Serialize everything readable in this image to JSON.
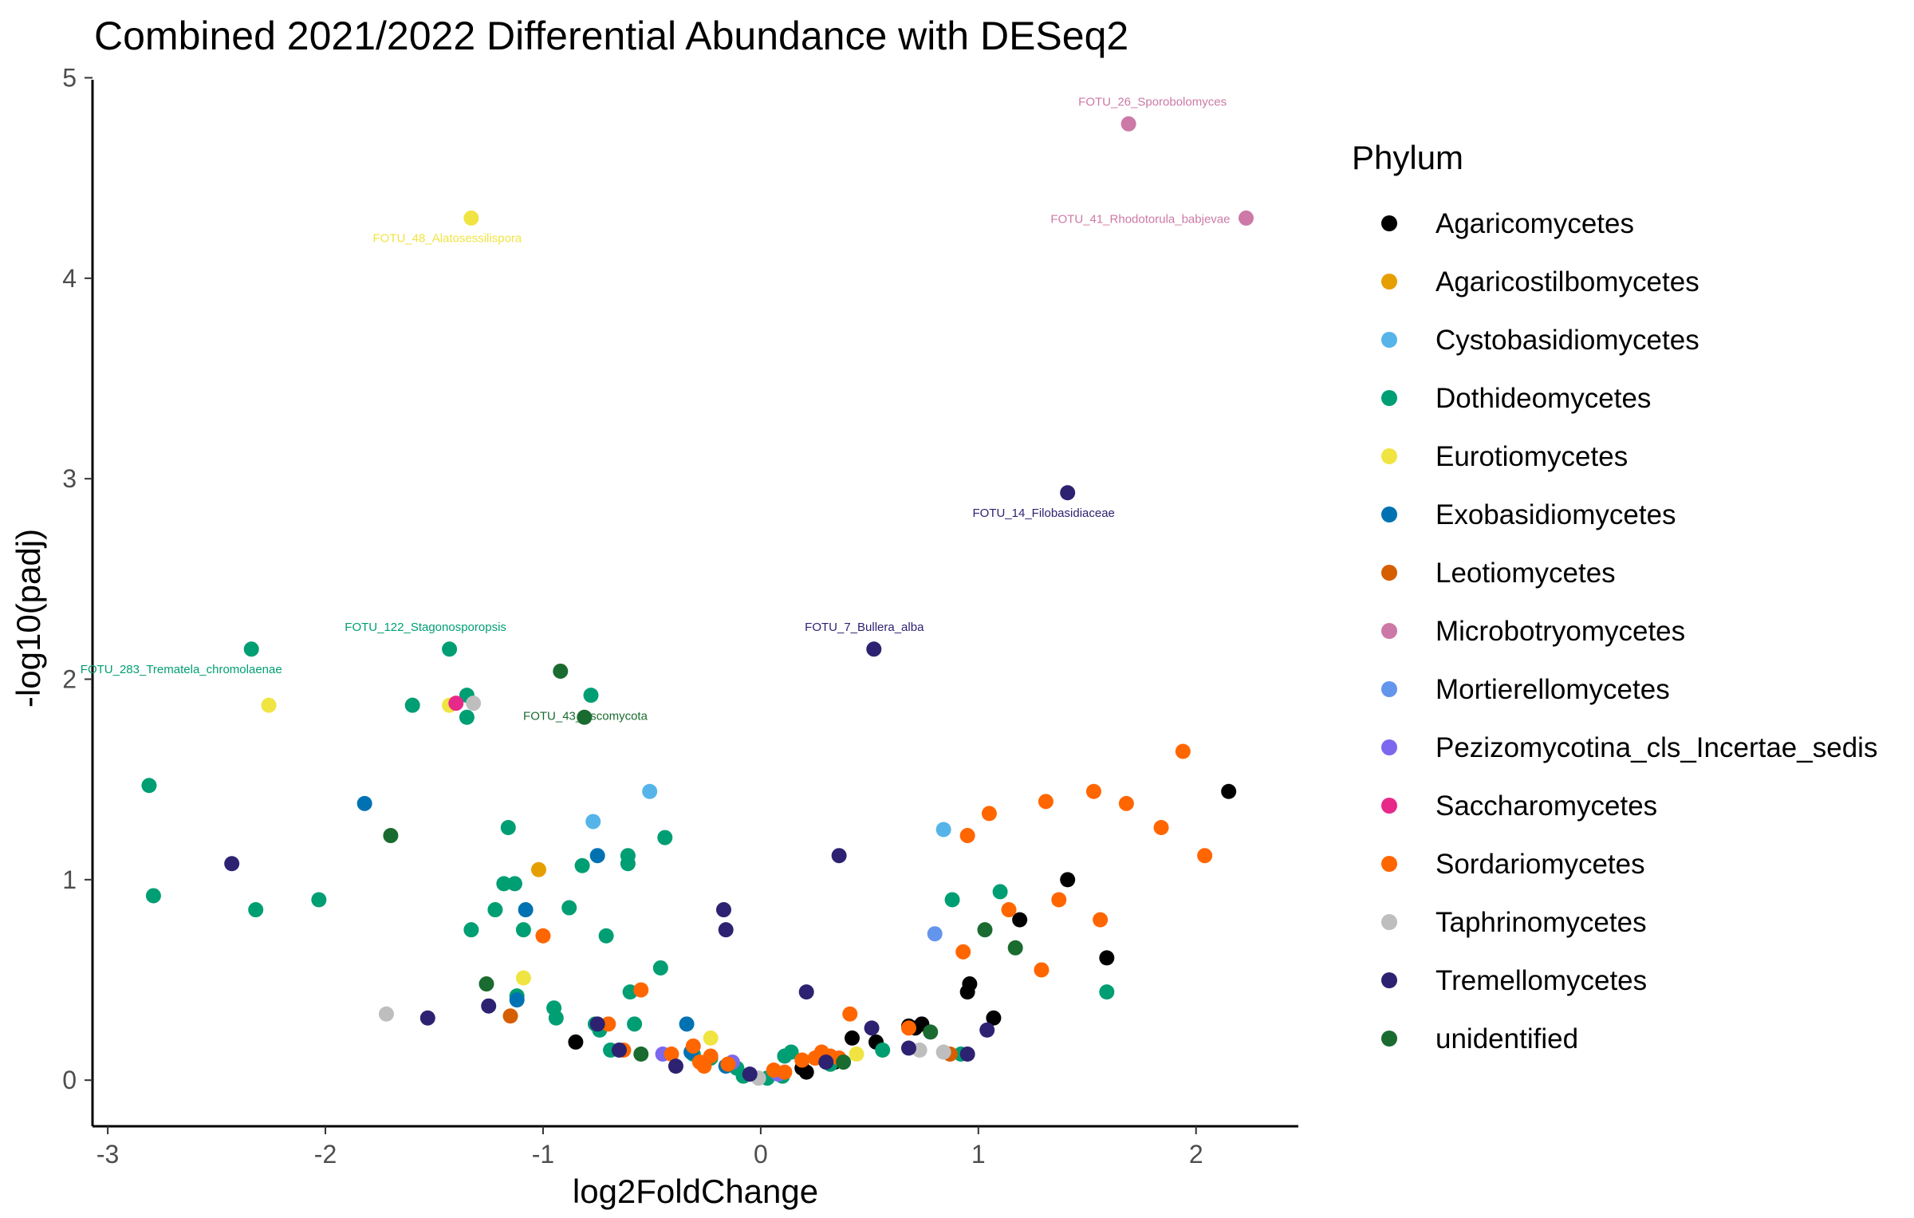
{
  "chart_data": {
    "type": "scatter",
    "title": "Combined 2021/2022 Differential Abundance with DESeq2",
    "xlabel": "log2FoldChange",
    "ylabel": "-log10(padj)",
    "xlim": [
      -3.07,
      2.47
    ],
    "ylim": [
      -0.23,
      4.99
    ],
    "xticks": [
      -3,
      -2,
      -1,
      0,
      1,
      2
    ],
    "yticks": [
      0,
      1,
      2,
      3,
      4,
      5
    ],
    "grid": false,
    "legend": {
      "title": "Phylum",
      "position": "right"
    },
    "series": [
      {
        "name": "Agaricomycetes",
        "color": "#000000",
        "points": [
          [
            -0.85,
            0.19
          ],
          [
            0.19,
            0.06
          ],
          [
            0.21,
            0.04
          ],
          [
            0.32,
            0.08
          ],
          [
            0.34,
            0.09
          ],
          [
            0.42,
            0.21
          ],
          [
            0.53,
            0.19
          ],
          [
            0.68,
            0.27
          ],
          [
            0.71,
            0.26
          ],
          [
            0.74,
            0.28
          ],
          [
            0.95,
            0.44
          ],
          [
            0.96,
            0.48
          ],
          [
            1.07,
            0.31
          ],
          [
            1.19,
            0.8
          ],
          [
            1.41,
            1.0
          ],
          [
            1.59,
            0.61
          ],
          [
            2.15,
            1.44
          ]
        ]
      },
      {
        "name": "Agaricostilbomycetes",
        "color": "#E69F00",
        "points": [
          [
            -1.02,
            1.05
          ]
        ]
      },
      {
        "name": "Cystobasidiomycetes",
        "color": "#56B4E9",
        "points": [
          [
            -0.77,
            1.29
          ],
          [
            -0.51,
            1.44
          ],
          [
            0.84,
            1.25
          ]
        ]
      },
      {
        "name": "Dothideomycetes",
        "color": "#009E73",
        "points": [
          [
            -2.81,
            1.47
          ],
          [
            -2.79,
            0.92
          ],
          [
            -2.34,
            2.15
          ],
          [
            -2.32,
            0.85
          ],
          [
            -2.03,
            0.9
          ],
          [
            -1.6,
            1.87
          ],
          [
            -1.43,
            2.15
          ],
          [
            -1.35,
            1.92
          ],
          [
            -1.35,
            1.81
          ],
          [
            -1.33,
            0.75
          ],
          [
            -1.22,
            0.85
          ],
          [
            -1.18,
            0.98
          ],
          [
            -1.16,
            1.26
          ],
          [
            -1.13,
            0.98
          ],
          [
            -1.12,
            0.42
          ],
          [
            -1.09,
            0.75
          ],
          [
            -0.95,
            0.36
          ],
          [
            -0.94,
            0.31
          ],
          [
            -0.88,
            0.86
          ],
          [
            -0.82,
            1.07
          ],
          [
            -0.78,
            1.92
          ],
          [
            -0.76,
            0.28
          ],
          [
            -0.74,
            0.25
          ],
          [
            -0.71,
            0.72
          ],
          [
            -0.69,
            0.15
          ],
          [
            -0.61,
            1.12
          ],
          [
            -0.61,
            1.08
          ],
          [
            -0.6,
            0.44
          ],
          [
            -0.58,
            0.28
          ],
          [
            -0.46,
            0.56
          ],
          [
            -0.44,
            1.21
          ],
          [
            -0.31,
            0.13
          ],
          [
            -0.23,
            0.11
          ],
          [
            -0.11,
            0.06
          ],
          [
            -0.08,
            0.02
          ],
          [
            0.03,
            0.01
          ],
          [
            0.1,
            0.02
          ],
          [
            0.11,
            0.12
          ],
          [
            0.14,
            0.14
          ],
          [
            0.32,
            0.08
          ],
          [
            0.56,
            0.15
          ],
          [
            0.88,
            0.9
          ],
          [
            0.92,
            0.13
          ],
          [
            1.1,
            0.94
          ],
          [
            1.59,
            0.44
          ]
        ]
      },
      {
        "name": "Eurotiomycetes",
        "color": "#F0E442",
        "points": [
          [
            -2.26,
            1.87
          ],
          [
            -1.43,
            1.87
          ],
          [
            -1.33,
            4.3
          ],
          [
            -1.09,
            0.51
          ],
          [
            -0.23,
            0.21
          ],
          [
            0.44,
            0.13
          ]
        ]
      },
      {
        "name": "Exobasidiomycetes",
        "color": "#0072B2",
        "points": [
          [
            -1.82,
            1.38
          ],
          [
            -1.12,
            0.4
          ],
          [
            -1.08,
            0.85
          ],
          [
            -0.75,
            1.12
          ],
          [
            -0.34,
            0.28
          ],
          [
            -0.32,
            0.14
          ],
          [
            -0.16,
            0.07
          ]
        ]
      },
      {
        "name": "Leotiomycetes",
        "color": "#D55E00",
        "points": [
          [
            -1.15,
            0.32
          ],
          [
            0.87,
            0.13
          ]
        ]
      },
      {
        "name": "Microbotryomycetes",
        "color": "#CC79A7",
        "points": [
          [
            1.69,
            4.77
          ],
          [
            2.23,
            4.3
          ]
        ]
      },
      {
        "name": "Mortierellomycetes",
        "color": "#6495ED",
        "points": [
          [
            0.8,
            0.73
          ]
        ]
      },
      {
        "name": "Pezizomycotina_cls_Incertae_sedis",
        "color": "#7B68EE",
        "points": [
          [
            -0.45,
            0.13
          ],
          [
            -0.13,
            0.09
          ],
          [
            0.08,
            0.03
          ]
        ]
      },
      {
        "name": "Saccharomycetes",
        "color": "#E7298A",
        "points": [
          [
            -1.4,
            1.88
          ]
        ]
      },
      {
        "name": "Sordariomycetes",
        "color": "#FF6600",
        "points": [
          [
            -1.0,
            0.72
          ],
          [
            -0.7,
            0.28
          ],
          [
            -0.63,
            0.15
          ],
          [
            -0.55,
            0.45
          ],
          [
            -0.41,
            0.13
          ],
          [
            -0.31,
            0.17
          ],
          [
            -0.28,
            0.09
          ],
          [
            -0.26,
            0.07
          ],
          [
            -0.23,
            0.12
          ],
          [
            -0.15,
            0.08
          ],
          [
            0.06,
            0.05
          ],
          [
            0.11,
            0.04
          ],
          [
            0.19,
            0.1
          ],
          [
            0.25,
            0.11
          ],
          [
            0.28,
            0.14
          ],
          [
            0.32,
            0.12
          ],
          [
            0.36,
            0.11
          ],
          [
            0.41,
            0.33
          ],
          [
            0.68,
            0.26
          ],
          [
            0.93,
            0.64
          ],
          [
            0.95,
            1.22
          ],
          [
            1.05,
            1.33
          ],
          [
            1.14,
            0.85
          ],
          [
            1.29,
            0.55
          ],
          [
            1.31,
            1.39
          ],
          [
            1.37,
            0.9
          ],
          [
            1.53,
            1.44
          ],
          [
            1.56,
            0.8
          ],
          [
            1.68,
            1.38
          ],
          [
            1.84,
            1.26
          ],
          [
            1.94,
            1.64
          ],
          [
            2.04,
            1.12
          ]
        ]
      },
      {
        "name": "Taphrinomycetes",
        "color": "#BEBEBE",
        "points": [
          [
            -1.72,
            0.33
          ],
          [
            -1.32,
            1.88
          ],
          [
            -0.01,
            0.01
          ],
          [
            0.73,
            0.15
          ],
          [
            0.84,
            0.14
          ]
        ]
      },
      {
        "name": "Tremellomycetes",
        "color": "#2D2271",
        "points": [
          [
            -2.43,
            1.08
          ],
          [
            -1.53,
            0.31
          ],
          [
            -1.25,
            0.37
          ],
          [
            -0.75,
            0.28
          ],
          [
            -0.65,
            0.15
          ],
          [
            -0.39,
            0.07
          ],
          [
            -0.17,
            0.85
          ],
          [
            -0.16,
            0.75
          ],
          [
            -0.05,
            0.03
          ],
          [
            0.21,
            0.44
          ],
          [
            0.3,
            0.09
          ],
          [
            0.36,
            1.12
          ],
          [
            0.51,
            0.26
          ],
          [
            0.52,
            2.15
          ],
          [
            0.68,
            0.16
          ],
          [
            0.95,
            0.13
          ],
          [
            1.04,
            0.25
          ],
          [
            1.41,
            2.93
          ]
        ]
      },
      {
        "name": "unidentified",
        "color": "#1A6B2F",
        "points": [
          [
            -1.7,
            1.22
          ],
          [
            -1.26,
            0.48
          ],
          [
            -0.92,
            2.04
          ],
          [
            -0.81,
            1.81
          ],
          [
            -0.55,
            0.13
          ],
          [
            0.38,
            0.09
          ],
          [
            0.78,
            0.24
          ],
          [
            1.03,
            0.75
          ],
          [
            1.17,
            0.66
          ]
        ]
      }
    ],
    "annotations": [
      {
        "text": "FOTU_26_Sporobolomyces",
        "x": 1.69,
        "y": 4.77,
        "color": "#CC79A7"
      },
      {
        "text": "FOTU_41_Rhodotorula_babjevae",
        "x": 2.23,
        "y": 4.3,
        "color": "#CC79A7"
      },
      {
        "text": "FOTU_48_Alatosessilispora",
        "x": -1.33,
        "y": 4.3,
        "color": "#F0E442"
      },
      {
        "text": "FOTU_14_Filobasidiaceae",
        "x": 1.41,
        "y": 2.93,
        "color": "#2D2271"
      },
      {
        "text": "FOTU_7_Bullera_alba",
        "x": 0.52,
        "y": 2.15,
        "color": "#2D2271"
      },
      {
        "text": "FOTU_122_Stagonosporopsis",
        "x": -1.43,
        "y": 2.15,
        "color": "#009E73"
      },
      {
        "text": "FOTU_283_Trematela_chromolaenae",
        "x": -2.34,
        "y": 2.15,
        "color": "#009E73"
      },
      {
        "text": "FOTU_43_Ascomycota",
        "x": -0.78,
        "y": 1.92,
        "color": "#1A6B2F"
      }
    ]
  }
}
